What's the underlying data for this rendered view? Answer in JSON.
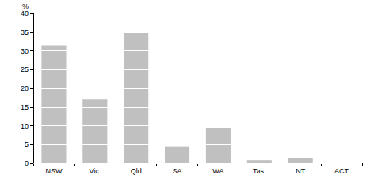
{
  "chart_data": {
    "type": "bar",
    "ylabel": "%",
    "categories": [
      "NSW",
      "Vic.",
      "Qld",
      "SA",
      "WA",
      "Tas.",
      "NT",
      "ACT"
    ],
    "values": [
      31.5,
      17,
      34.8,
      4.5,
      9.5,
      0.8,
      1.3,
      0
    ],
    "color": "#c0c0c0",
    "ylim": [
      0,
      40
    ],
    "yticks": [
      0,
      5,
      10,
      15,
      20,
      25,
      30,
      35,
      40
    ],
    "grid": true
  }
}
